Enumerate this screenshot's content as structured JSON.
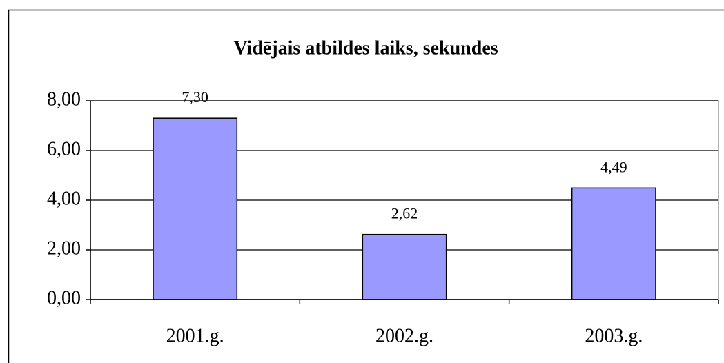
{
  "chart_data": {
    "type": "bar",
    "title": "Vidējais atbildes laiks, sekundes",
    "categories": [
      "2001.g.",
      "2002.g.",
      "2003.g."
    ],
    "values": [
      7.3,
      2.62,
      4.49
    ],
    "value_labels": [
      "7,30",
      "2,62",
      "4,49"
    ],
    "color": "#9999ff",
    "ylim": [
      0,
      8
    ],
    "yticks": [
      {
        "value": 0,
        "label": "0,00"
      },
      {
        "value": 2,
        "label": "2,00"
      },
      {
        "value": 4,
        "label": "4,00"
      },
      {
        "value": 6,
        "label": "6,00"
      },
      {
        "value": 8,
        "label": "8,00"
      }
    ],
    "grid": true
  }
}
